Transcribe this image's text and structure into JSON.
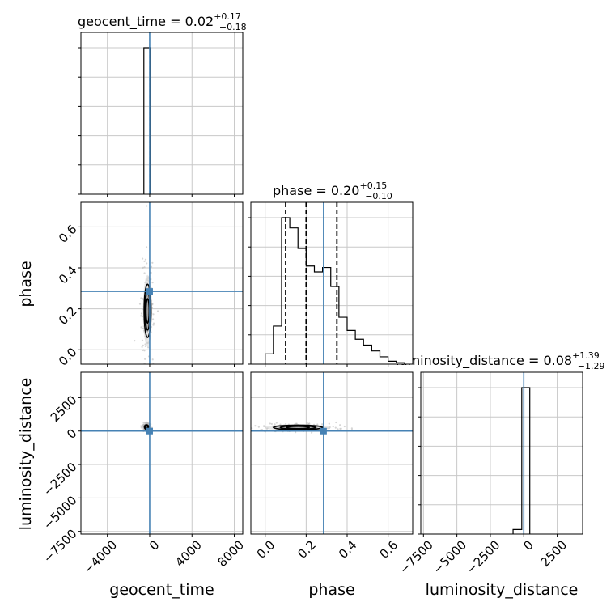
{
  "chart_data": {
    "type": "corner",
    "parameters": [
      "geocent_time",
      "phase",
      "luminosity_distance"
    ],
    "titles": [
      {
        "param": "geocent_time",
        "prefix": "geocent_time = ",
        "median": "0.02",
        "plus": "+0.17",
        "minus": "−0.18"
      },
      {
        "param": "phase",
        "prefix": "phase = ",
        "median": "0.20",
        "plus": "+0.15",
        "minus": "−0.10"
      },
      {
        "param": "luminosity_distance",
        "prefix": "luminosity_distance = ",
        "median": "0.08",
        "plus": "+1.39",
        "minus": "−1.29"
      }
    ],
    "axes": {
      "geocent_time": {
        "range": [
          -6500,
          8800
        ],
        "ticks": [
          -4000,
          0,
          4000,
          8000
        ],
        "tick_labels": [
          "−4000",
          "0",
          "4000",
          "8000"
        ]
      },
      "phase": {
        "range": [
          -0.07,
          0.72
        ],
        "ticks": [
          0.0,
          0.2,
          0.4,
          0.6
        ],
        "tick_labels": [
          "0.0",
          "0.2",
          "0.4",
          "0.6"
        ]
      },
      "luminosity_distance": {
        "range": [
          -7700,
          4400
        ],
        "ticks": [
          -7500,
          -5000,
          -2500,
          0,
          2500
        ],
        "tick_labels": [
          "−7500",
          "−5000",
          "−2500",
          "0",
          "2500"
        ]
      }
    },
    "truths": {
      "geocent_time": 0,
      "phase": 0.285,
      "luminosity_distance": 0
    },
    "truth_color": "#4682b4",
    "line_color": "#000000",
    "grid": true,
    "histograms": {
      "geocent_time": {
        "bin_edges": [
          -550,
          0,
          40
        ],
        "counts": [
          1.0,
          1.0
        ]
      },
      "phase": {
        "bin_edges": [
          0.0,
          0.04,
          0.08,
          0.12,
          0.16,
          0.2,
          0.24,
          0.28,
          0.32,
          0.36,
          0.4,
          0.44,
          0.48,
          0.52,
          0.56,
          0.6,
          0.64,
          0.68
        ],
        "counts": [
          0.07,
          0.26,
          1.0,
          0.93,
          0.79,
          0.67,
          0.63,
          0.66,
          0.53,
          0.32,
          0.23,
          0.17,
          0.13,
          0.09,
          0.05,
          0.02,
          0.01
        ]
      },
      "luminosity_distance": {
        "bin_edges": [
          -800,
          -150,
          450
        ],
        "counts": [
          0.03,
          0.97
        ]
      }
    },
    "quantile_lines": {
      "phase": [
        0.1,
        0.2,
        0.35
      ]
    },
    "contours": {
      "phase_vs_geocent_time": {
        "center": [
          -200,
          0.19
        ],
        "extent": [
          650,
          0.26
        ]
      },
      "luminosity_distance_vs_geocent_time": {
        "center": [
          -300,
          300
        ],
        "extent": [
          400,
          350
        ]
      },
      "luminosity_distance_vs_phase": {
        "center": [
          0.16,
          270
        ],
        "extent": [
          0.24,
          350
        ]
      }
    }
  }
}
